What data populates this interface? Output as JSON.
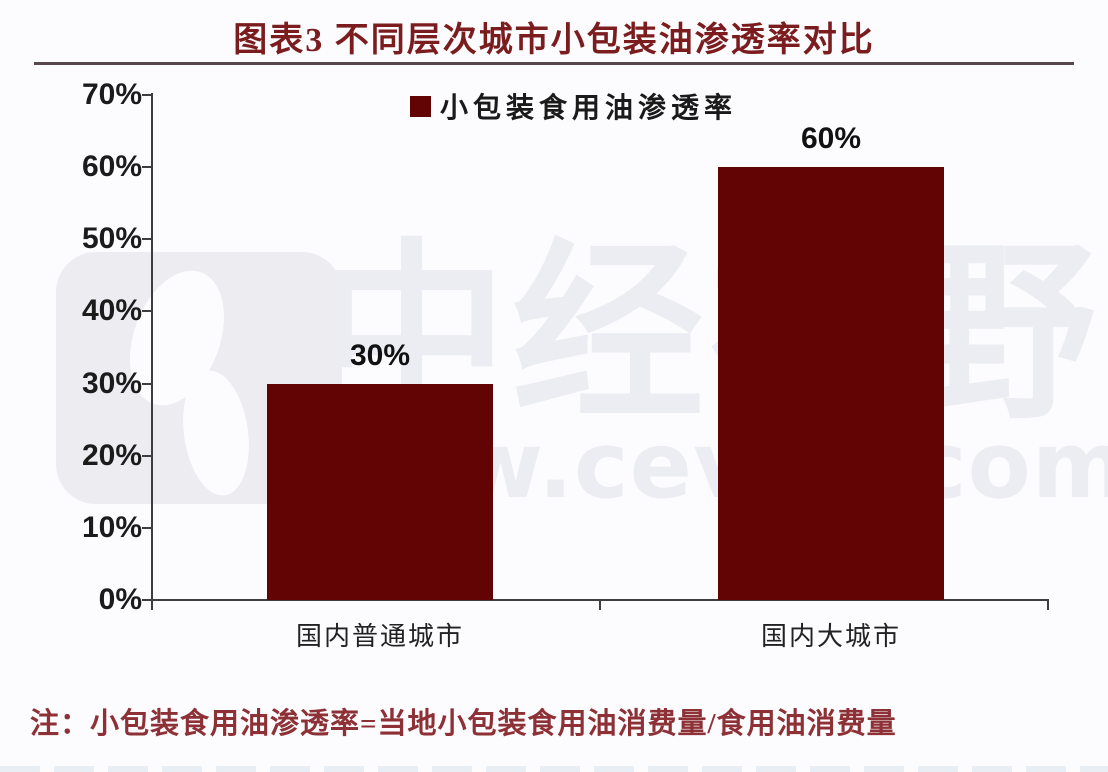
{
  "title": "图表3 不同层次城市小包装油渗透率对比",
  "legend": {
    "label": "小包装食用油渗透率"
  },
  "note": "注：小包装食用油渗透率=当地小包装食用油消费量/食用油消费量",
  "watermark": {
    "brand": "中经视野",
    "url": "www.cevsn.com"
  },
  "colors": {
    "bar": "#620404",
    "title": "#7b1d1f",
    "note": "#8d3136",
    "axis": "#3d3d3d",
    "title_rule": "#5a474b",
    "watermark": "#ecedf2"
  },
  "chart_data": {
    "type": "bar",
    "categories": [
      "国内普通城市",
      "国内大城市"
    ],
    "values": [
      30,
      60
    ],
    "value_labels": [
      "30%",
      "60%"
    ],
    "series_name": "小包装食用油渗透率",
    "title": "图表3 不同层次城市小包装油渗透率对比",
    "xlabel": "",
    "ylabel": "",
    "ylim": [
      0,
      70
    ],
    "ytick_step": 10,
    "yticks": [
      "0%",
      "10%",
      "20%",
      "30%",
      "40%",
      "50%",
      "60%",
      "70%"
    ],
    "grid": false,
    "legend_position": "top-center",
    "bar_color": "#620404"
  }
}
